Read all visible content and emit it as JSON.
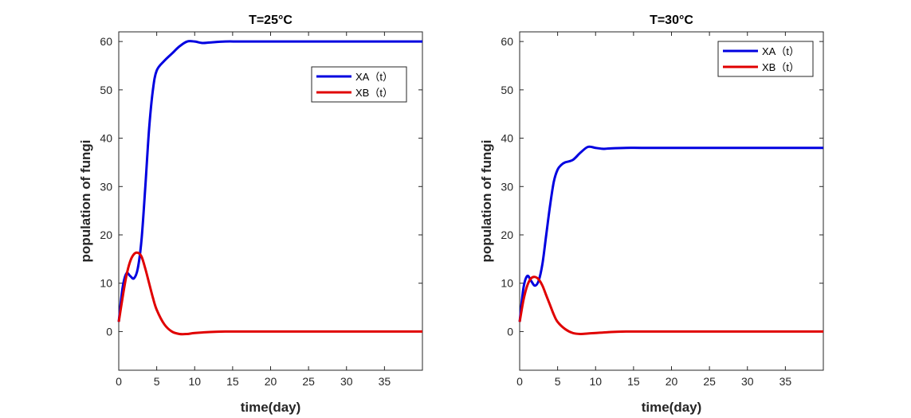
{
  "chart_data": [
    {
      "type": "line",
      "title": "T=25°C",
      "xlabel": "time(day)",
      "ylabel": "population of fungi",
      "xlim": [
        0,
        40
      ],
      "ylim": [
        -8,
        62
      ],
      "xticks": [
        0,
        5,
        10,
        15,
        20,
        25,
        30,
        35
      ],
      "yticks": [
        0,
        10,
        20,
        30,
        40,
        50,
        60
      ],
      "grid": false,
      "legend_position": "top-right",
      "series": [
        {
          "name": "XA（t）",
          "color": "#0000e0",
          "x": [
            0,
            0.5,
            1,
            1.5,
            2,
            2.5,
            3,
            3.5,
            4,
            4.5,
            5,
            6,
            7,
            8,
            9,
            10,
            11,
            12,
            14,
            16,
            20,
            25,
            30,
            35,
            40
          ],
          "y": [
            2,
            9,
            12,
            11.5,
            11,
            13,
            19,
            30,
            42,
            50,
            54,
            56,
            57.5,
            59,
            60,
            60,
            59.7,
            59.8,
            60,
            60,
            60,
            60,
            60,
            60,
            60
          ]
        },
        {
          "name": "XB（t）",
          "color": "#e00000",
          "x": [
            0,
            0.5,
            1,
            1.5,
            2,
            2.5,
            3,
            3.5,
            4,
            4.5,
            5,
            6,
            7,
            8,
            9,
            10,
            12,
            14,
            16,
            20,
            25,
            30,
            35,
            40
          ],
          "y": [
            2,
            7,
            11.5,
            14.5,
            16,
            16.3,
            15.5,
            13,
            10,
            7,
            4.5,
            1.5,
            0,
            -0.5,
            -0.5,
            -0.3,
            -0.1,
            0,
            0,
            0,
            0,
            0,
            0,
            0
          ]
        }
      ]
    },
    {
      "type": "line",
      "title": "T=30°C",
      "xlabel": "time(day)",
      "ylabel": "population of fungi",
      "xlim": [
        0,
        40
      ],
      "ylim": [
        -8,
        62
      ],
      "xticks": [
        0,
        5,
        10,
        15,
        20,
        25,
        30,
        35
      ],
      "yticks": [
        0,
        10,
        20,
        30,
        40,
        50,
        60
      ],
      "grid": false,
      "legend_position": "top-right",
      "series": [
        {
          "name": "XA（t）",
          "color": "#0000e0",
          "x": [
            0,
            0.5,
            1,
            1.5,
            2,
            2.5,
            3,
            3.5,
            4,
            4.5,
            5,
            5.5,
            6,
            7,
            8,
            9,
            10,
            11,
            12,
            14,
            16,
            20,
            25,
            30,
            35,
            40
          ],
          "y": [
            2,
            9,
            11.5,
            10.5,
            9.5,
            10.5,
            14,
            20,
            26,
            31,
            33.5,
            34.5,
            35,
            35.5,
            37,
            38.2,
            38,
            37.8,
            37.9,
            38,
            38,
            38,
            38,
            38,
            38,
            38
          ]
        },
        {
          "name": "XB（t）",
          "color": "#e00000",
          "x": [
            0,
            0.5,
            1,
            1.5,
            2,
            2.5,
            3,
            3.5,
            4,
            4.5,
            5,
            6,
            7,
            8,
            9,
            10,
            12,
            14,
            16,
            20,
            25,
            30,
            35,
            40
          ],
          "y": [
            2,
            6.5,
            9.5,
            11,
            11.3,
            10.8,
            9.5,
            7.5,
            5.5,
            3.5,
            2,
            0.5,
            -0.3,
            -0.5,
            -0.4,
            -0.3,
            -0.1,
            0,
            0,
            0,
            0,
            0,
            0,
            0
          ]
        }
      ]
    }
  ]
}
